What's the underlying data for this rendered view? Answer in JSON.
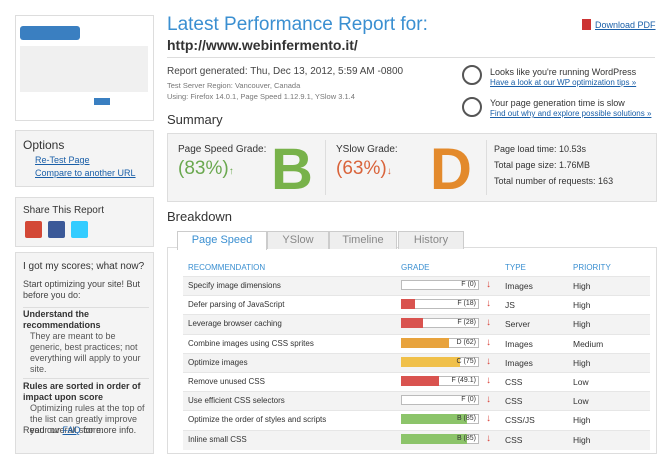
{
  "sidebar": {
    "options": {
      "title": "Options",
      "links": [
        "Re-Test Page",
        "Compare to another URL"
      ]
    },
    "share": {
      "title": "Share This Report"
    },
    "help": {
      "title": "I got my scores; what now?",
      "intro": "Start optimizing your site! But before you do:",
      "items": [
        {
          "title": "Understand the recommendations",
          "text": "They are meant to be generic, best practices; not everything will apply to your site."
        },
        {
          "title": "Rules are sorted in order of impact upon score",
          "text": "Optimizing rules at the top of the list can greatly improve your overall score."
        }
      ],
      "footer_before": "Read our",
      "footer_link": "FAQ",
      "footer_after": "for more info."
    }
  },
  "header": {
    "title": "Latest Performance Report for:",
    "url": "http://www.webinfermento.it/",
    "download": "Download PDF",
    "generated": "Report generated: Thu, Dec 13, 2012, 5:59 AM -0800",
    "region": "Test Server Region: Vancouver, Canada",
    "using": "Using: Firefox 14.0.1, Page Speed 1.12.9.1, YSlow 3.1.4",
    "notes": [
      {
        "title": "Looks like you're running WordPress",
        "link": "Have a look at our WP optimization tips »"
      },
      {
        "title": "Your page generation time is slow",
        "link": "Find out why and explore possible solutions »"
      }
    ]
  },
  "summary": {
    "title": "Summary",
    "pagespeed": {
      "label": "Page Speed Grade:",
      "score": "(83%)",
      "trend": "↑",
      "letter": "B"
    },
    "yslow": {
      "label": "YSlow Grade:",
      "score": "(63%)",
      "trend": "↓",
      "letter": "D"
    },
    "stats": [
      "Page load time: 10.53s",
      "Total page size: 1.76MB",
      "Total number of requests: 163"
    ]
  },
  "breakdown": {
    "title": "Breakdown",
    "tabs": [
      "Page Speed",
      "YSlow",
      "Timeline",
      "History"
    ],
    "columns": [
      "RECOMMENDATION",
      "GRADE",
      "TYPE",
      "PRIORITY"
    ],
    "rows": [
      {
        "name": "Specify image dimensions",
        "score": 0,
        "grade": "F (0)",
        "color": "#d9534f",
        "trend": "↓",
        "type": "Images",
        "priority": "High"
      },
      {
        "name": "Defer parsing of JavaScript",
        "score": 18,
        "grade": "F (18)",
        "color": "#d9534f",
        "trend": "↓",
        "type": "JS",
        "priority": "High"
      },
      {
        "name": "Leverage browser caching",
        "score": 28,
        "grade": "F (28)",
        "color": "#d9534f",
        "trend": "↓",
        "type": "Server",
        "priority": "High"
      },
      {
        "name": "Combine images using CSS sprites",
        "score": 62,
        "grade": "D (62)",
        "color": "#e8a33d",
        "trend": "↓",
        "type": "Images",
        "priority": "Medium"
      },
      {
        "name": "Optimize images",
        "score": 75,
        "grade": "C (75)",
        "color": "#f0c04a",
        "trend": "↓",
        "type": "Images",
        "priority": "High"
      },
      {
        "name": "Remove unused CSS",
        "score": 49.1,
        "grade": "F (49.1)",
        "color": "#d9534f",
        "trend": "↓",
        "type": "CSS",
        "priority": "Low"
      },
      {
        "name": "Use efficient CSS selectors",
        "score": 0,
        "grade": "F (0)",
        "color": "#d9534f",
        "trend": "↓",
        "type": "CSS",
        "priority": "Low"
      },
      {
        "name": "Optimize the order of styles and scripts",
        "score": 85,
        "grade": "B (85)",
        "color": "#8cc46a",
        "trend": "↓",
        "type": "CSS/JS",
        "priority": "High"
      },
      {
        "name": "Inline small CSS",
        "score": 85,
        "grade": "B (85)",
        "color": "#8cc46a",
        "trend": "↓",
        "type": "CSS",
        "priority": "High"
      }
    ]
  }
}
